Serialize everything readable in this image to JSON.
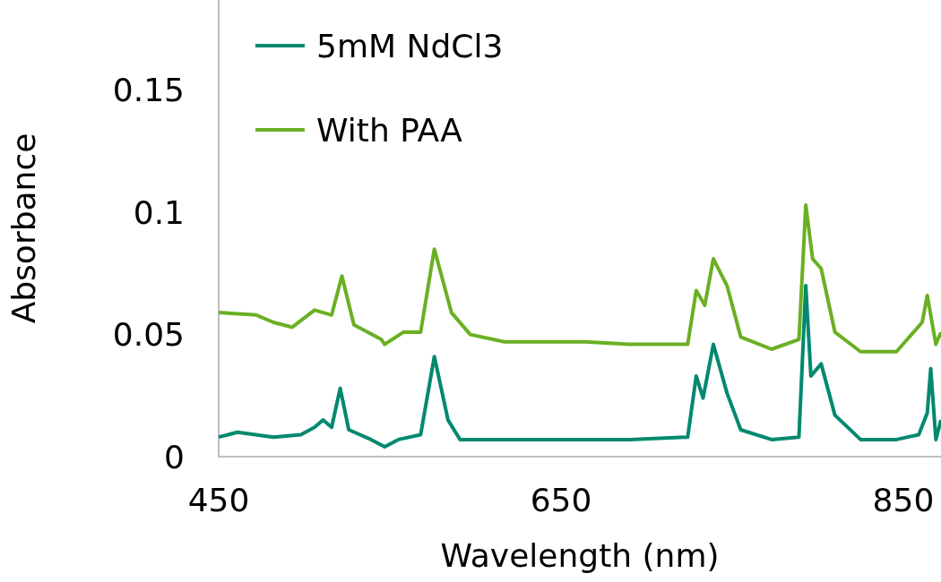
{
  "chart_data": {
    "type": "line",
    "xlabel": "Wavelength (nm)",
    "ylabel": "Absorbance",
    "xlim": [
      450,
      872
    ],
    "xticks": [
      450,
      650,
      850
    ],
    "ylim": [
      0,
      0.187
    ],
    "yticks": [
      0,
      0.05,
      0.1,
      0.15
    ],
    "grid": false,
    "legend": "top left",
    "marker": "none",
    "line_style": "solid",
    "series": [
      {
        "name": "5mM NdCl3",
        "color": "#00896f",
        "x": [
          450,
          461,
          482,
          498,
          506,
          511,
          516,
          521,
          526,
          539,
          547,
          555,
          568,
          576,
          584,
          591,
          617,
          664,
          690,
          724,
          729,
          733,
          739,
          747,
          755,
          773,
          789,
          793,
          796,
          802,
          810,
          825,
          846,
          859,
          864,
          866,
          869,
          872
        ],
        "values": [
          0.008,
          0.01,
          0.008,
          0.009,
          0.012,
          0.015,
          0.012,
          0.028,
          0.011,
          0.007,
          0.004,
          0.007,
          0.009,
          0.041,
          0.015,
          0.007,
          0.007,
          0.007,
          0.007,
          0.008,
          0.033,
          0.024,
          0.046,
          0.026,
          0.011,
          0.007,
          0.008,
          0.07,
          0.033,
          0.038,
          0.017,
          0.007,
          0.007,
          0.009,
          0.018,
          0.036,
          0.007,
          0.015
        ]
      },
      {
        "name": "With PAA",
        "color": "#6ab023",
        "x": [
          450,
          472,
          482,
          493,
          506,
          516,
          522,
          529,
          545,
          547,
          558,
          568,
          576,
          586,
          597,
          617,
          664,
          690,
          724,
          729,
          734,
          739,
          747,
          755,
          773,
          789,
          793,
          797,
          802,
          810,
          825,
          846,
          861,
          864,
          869,
          872
        ],
        "values": [
          0.059,
          0.058,
          0.055,
          0.053,
          0.06,
          0.058,
          0.074,
          0.054,
          0.048,
          0.046,
          0.051,
          0.051,
          0.085,
          0.059,
          0.05,
          0.047,
          0.047,
          0.046,
          0.046,
          0.068,
          0.062,
          0.081,
          0.07,
          0.049,
          0.044,
          0.048,
          0.103,
          0.081,
          0.077,
          0.051,
          0.043,
          0.043,
          0.055,
          0.066,
          0.046,
          0.051
        ]
      }
    ]
  }
}
